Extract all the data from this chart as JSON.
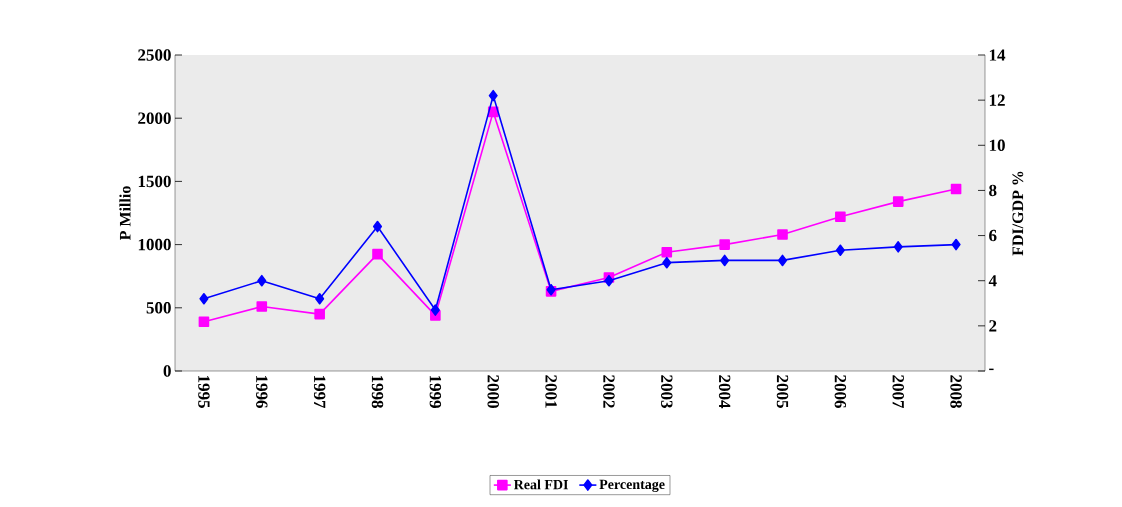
{
  "chart_data": {
    "type": "line",
    "ylabel": "P Millio",
    "y2label": "FDI/GDP %",
    "categories": [
      "1995",
      "1996",
      "1997",
      "1998",
      "1999",
      "2000",
      "2001",
      "2002",
      "2003",
      "2004",
      "2005",
      "2006",
      "2007",
      "2008"
    ],
    "series": [
      {
        "name": "Real FDI",
        "color": "#ff00ff",
        "marker": "square",
        "values": [
          390,
          510,
          450,
          925,
          440,
          2050,
          630,
          740,
          940,
          1000,
          1080,
          1220,
          1340,
          1440
        ]
      },
      {
        "name": "Percentage",
        "color": "#0000ff",
        "marker": "diamond",
        "axis": "y2",
        "values": [
          3.2,
          4.0,
          3.2,
          6.4,
          2.7,
          12.2,
          3.6,
          4.0,
          4.8,
          4.9,
          4.9,
          5.35,
          5.5,
          5.6
        ]
      }
    ],
    "ylim": [
      0,
      2500
    ],
    "yticks": [
      0,
      500,
      1000,
      1500,
      2000,
      2500
    ],
    "y2lim": [
      0,
      14
    ],
    "y2ticks": [
      {
        "value": 0,
        "label": "-"
      },
      2,
      4,
      6,
      8,
      10,
      12,
      14
    ],
    "grid": false,
    "legend": "bottom",
    "line_style": "solid"
  }
}
